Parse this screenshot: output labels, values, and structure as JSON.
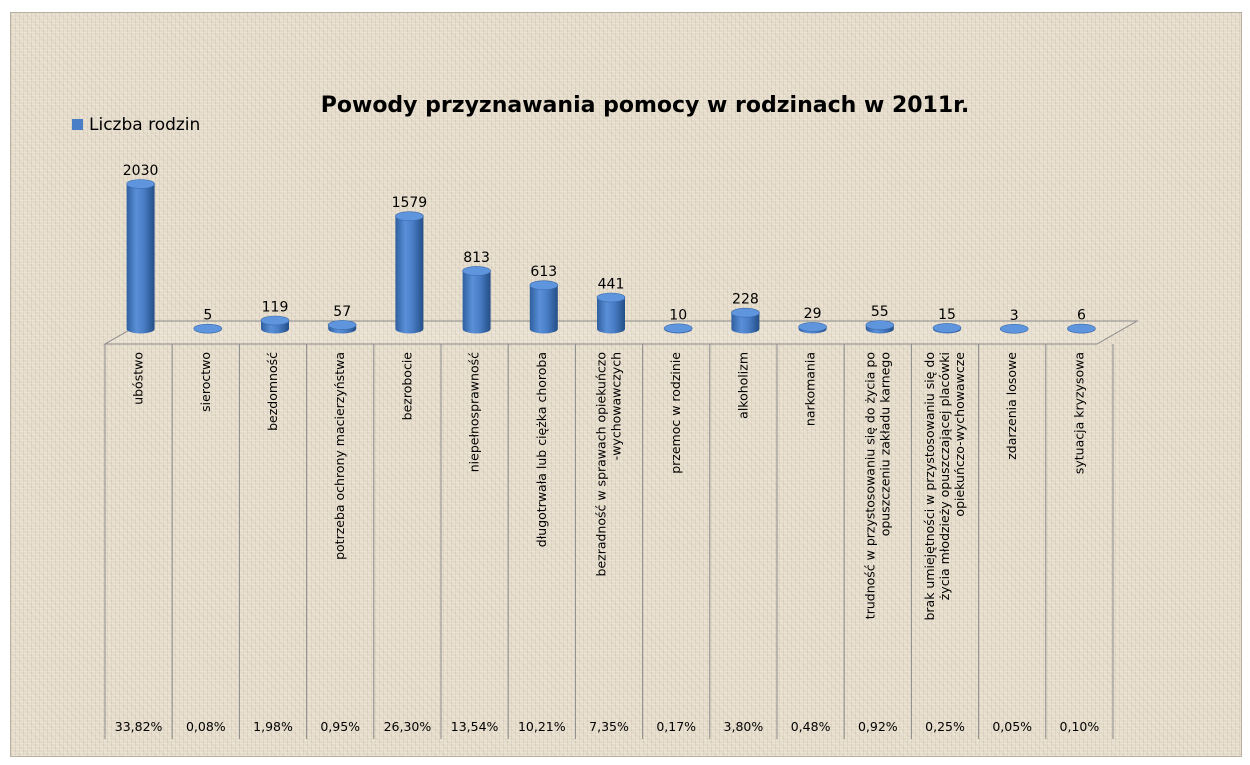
{
  "chart_data": {
    "type": "bar",
    "title": "Powody przyznawania pomocy w rodzinach w 2011r.",
    "legend": {
      "label": "Liczba rodzin",
      "position": "top-left"
    },
    "color": "#4a7fc8",
    "categories": [
      "ubóstwo",
      "sieroctwo",
      "bezdomność",
      "potrzeba ochrony macierzyństwa",
      "bezrobocie",
      "niepełnosprawność",
      "długotrwała lub ciężka choroba",
      "bezradność w sprawach opiekuńczo -wychowawczych",
      "przemoc w rodzinie",
      "alkoholizm",
      "narkomania",
      "trudność w przystosowaniu się do życia po opuszczeniu zakładu karnego",
      "brak umiejętności w przystosowaniu się do życia młodzieży opuszczającej placówki opiekuńczo-wychowawcze",
      "zdarzenia losowe",
      "sytuacja kryzysowa"
    ],
    "series": [
      {
        "name": "Liczba rodzin",
        "values": [
          2030,
          5,
          119,
          57,
          1579,
          813,
          613,
          441,
          10,
          228,
          29,
          55,
          15,
          3,
          6
        ],
        "data_labels": [
          "2030",
          "5",
          "119",
          "57",
          "1579",
          "813",
          "613",
          "441",
          "10",
          "228",
          "29",
          "55",
          "15",
          "3",
          "6"
        ]
      }
    ],
    "percentages": [
      "33,82%",
      "0,08%",
      "1,98%",
      "0,95%",
      "26,30%",
      "13,54%",
      "10,21%",
      "7,35%",
      "0,17%",
      "3,80%",
      "0,48%",
      "0,92%",
      "0,25%",
      "0,05%",
      "0,10%"
    ],
    "ylim": [
      0,
      2100
    ],
    "grid": false
  }
}
